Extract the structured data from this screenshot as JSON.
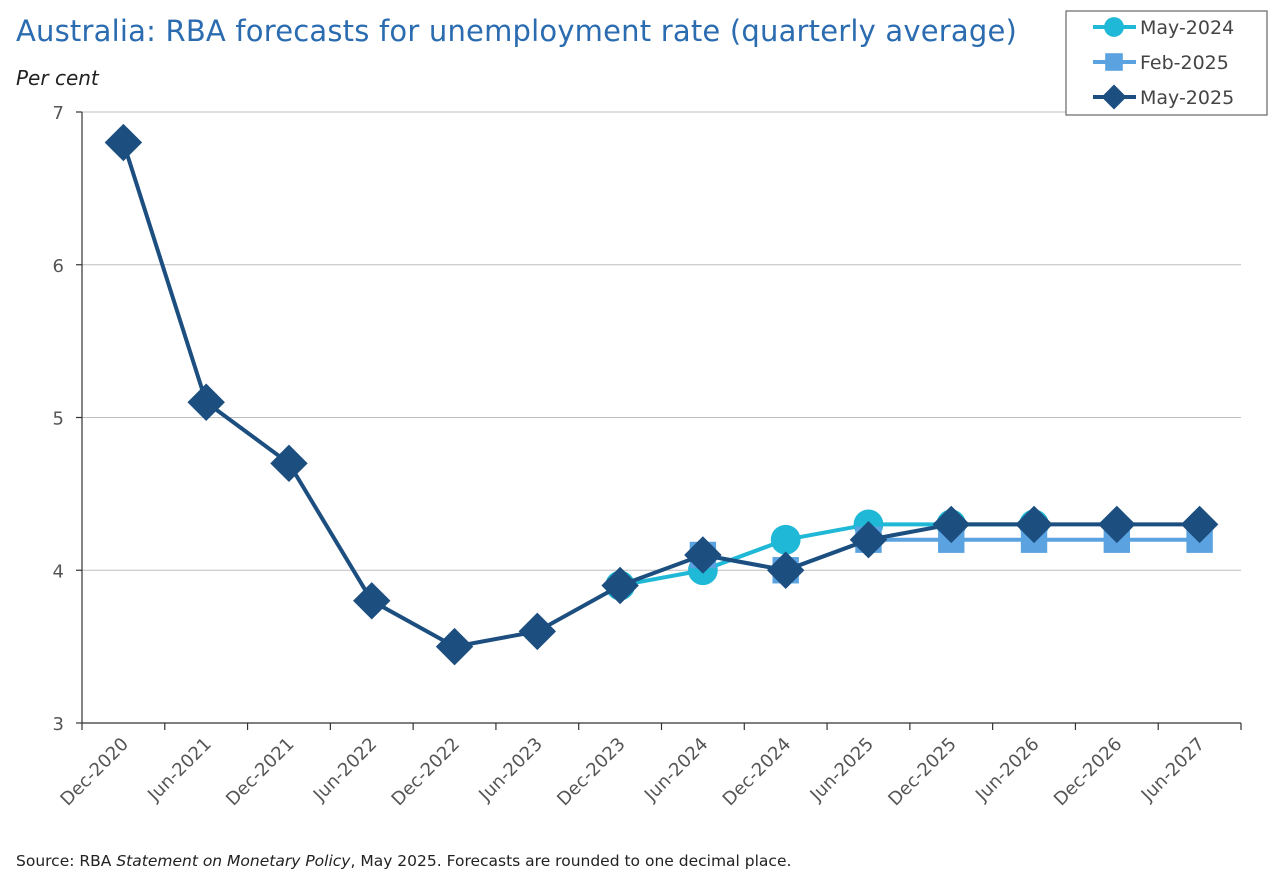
{
  "chart_data": {
    "type": "line",
    "title": "Australia: RBA forecasts for unemployment rate (quarterly average)",
    "ylabel": "Per cent",
    "xlabel": "",
    "ylim": [
      3,
      7
    ],
    "yticks": [
      3,
      4,
      5,
      6,
      7
    ],
    "grid": true,
    "legend_position": "top-right",
    "categories": [
      "Dec-2020",
      "Jun-2021",
      "Dec-2021",
      "Jun-2022",
      "Dec-2022",
      "Jun-2023",
      "Dec-2023",
      "Jun-2024",
      "Dec-2024",
      "Jun-2025",
      "Dec-2025",
      "Jun-2026",
      "Dec-2026",
      "Jun-2027"
    ],
    "series": [
      {
        "name": "May-2024",
        "color": "#1fb8d6",
        "marker": "circle",
        "values": [
          null,
          null,
          null,
          null,
          null,
          null,
          3.9,
          4.0,
          4.2,
          4.3,
          4.3,
          4.3,
          null,
          null
        ]
      },
      {
        "name": "Feb-2025",
        "color": "#5ba3e0",
        "marker": "square",
        "values": [
          null,
          null,
          null,
          null,
          null,
          null,
          null,
          4.1,
          4.0,
          4.2,
          4.2,
          4.2,
          4.2,
          4.2
        ]
      },
      {
        "name": "May-2025",
        "color": "#1c4e80",
        "marker": "diamond",
        "values": [
          6.8,
          5.1,
          4.7,
          3.8,
          3.5,
          3.6,
          3.9,
          4.1,
          4.0,
          4.2,
          4.3,
          4.3,
          4.3,
          4.3
        ]
      }
    ],
    "source": {
      "prefix": "Source: RBA ",
      "italic": "Statement on Monetary Policy",
      "suffix": ", May 2025. Forecasts are rounded to one decimal place."
    }
  }
}
